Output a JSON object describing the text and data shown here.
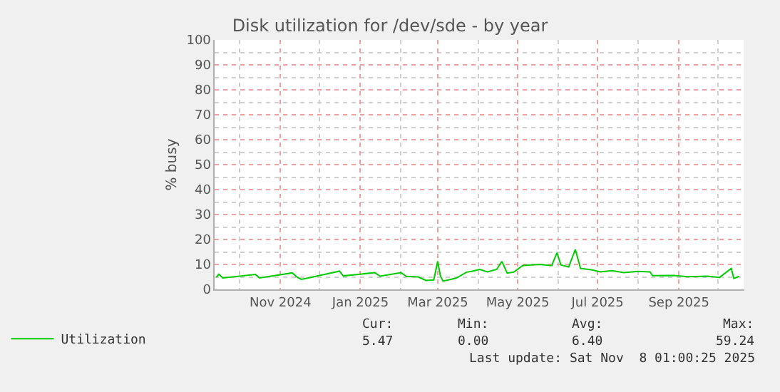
{
  "chart_data": {
    "type": "line",
    "title": "Disk utilization for /dev/sde - by year",
    "ylabel": "% busy",
    "xlim": [
      "2024-09-12",
      "2025-10-21"
    ],
    "xticks": [
      {
        "value": "2024-11-01",
        "label": "Nov 2024"
      },
      {
        "value": "2025-01-01",
        "label": "Jan 2025"
      },
      {
        "value": "2025-03-01",
        "label": "Mar 2025"
      },
      {
        "value": "2025-05-01",
        "label": "May 2025"
      },
      {
        "value": "2025-07-01",
        "label": "Jul 2025"
      },
      {
        "value": "2025-09-01",
        "label": "Sep 2025"
      }
    ],
    "ylim": [
      0,
      100
    ],
    "yticks": [
      0,
      10,
      20,
      30,
      40,
      50,
      60,
      70,
      80,
      90,
      100
    ],
    "grid": true,
    "legend": "bottom left",
    "marker": "none",
    "line_style": "solid",
    "x": [
      "2024-09-13",
      "2024-09-15",
      "2024-09-18",
      "2024-10-13",
      "2024-10-16",
      "2024-11-10",
      "2024-11-14",
      "2024-11-17",
      "2024-11-26",
      "2024-12-16",
      "2024-12-19",
      "2025-01-12",
      "2025-01-16",
      "2025-02-01",
      "2025-02-05",
      "2025-02-14",
      "2025-02-20",
      "2025-02-26",
      "2025-03-01",
      "2025-03-03",
      "2025-03-05",
      "2025-03-15",
      "2025-03-23",
      "2025-03-27",
      "2025-04-02",
      "2025-04-08",
      "2025-04-15",
      "2025-04-19",
      "2025-04-23",
      "2025-04-28",
      "2025-05-05",
      "2025-05-18",
      "2025-05-27",
      "2025-05-31",
      "2025-06-03",
      "2025-06-09",
      "2025-06-14",
      "2025-06-18",
      "2025-06-27",
      "2025-07-03",
      "2025-07-12",
      "2025-07-21",
      "2025-08-01",
      "2025-08-10",
      "2025-08-12",
      "2025-08-28",
      "2025-09-08",
      "2025-09-23",
      "2025-10-02",
      "2025-10-11",
      "2025-10-13",
      "2025-10-17"
    ],
    "series": [
      {
        "name": "Utilization",
        "color": "#00cc00",
        "values": [
          4.8,
          6.1,
          4.6,
          6.0,
          4.6,
          6.6,
          4.8,
          4.0,
          5.0,
          7.3,
          5.4,
          6.7,
          5.3,
          6.7,
          5.2,
          5.0,
          3.6,
          3.8,
          11.2,
          5.5,
          3.3,
          4.5,
          6.9,
          7.2,
          8.0,
          7.0,
          8.0,
          11.2,
          6.5,
          6.9,
          9.6,
          10.0,
          9.5,
          14.7,
          9.8,
          9.0,
          16.0,
          8.4,
          7.8,
          7.0,
          7.5,
          6.7,
          7.2,
          7.0,
          5.5,
          5.6,
          5.1,
          5.3,
          4.8,
          8.4,
          4.4,
          5.2
        ]
      }
    ],
    "annotations": [
      "Cur:",
      "Min:",
      "Avg:",
      "Max:",
      "5.47",
      "0.00",
      "6.40",
      "59.24",
      "Last update: Sat Nov  8 01:00:25 2025"
    ]
  }
}
